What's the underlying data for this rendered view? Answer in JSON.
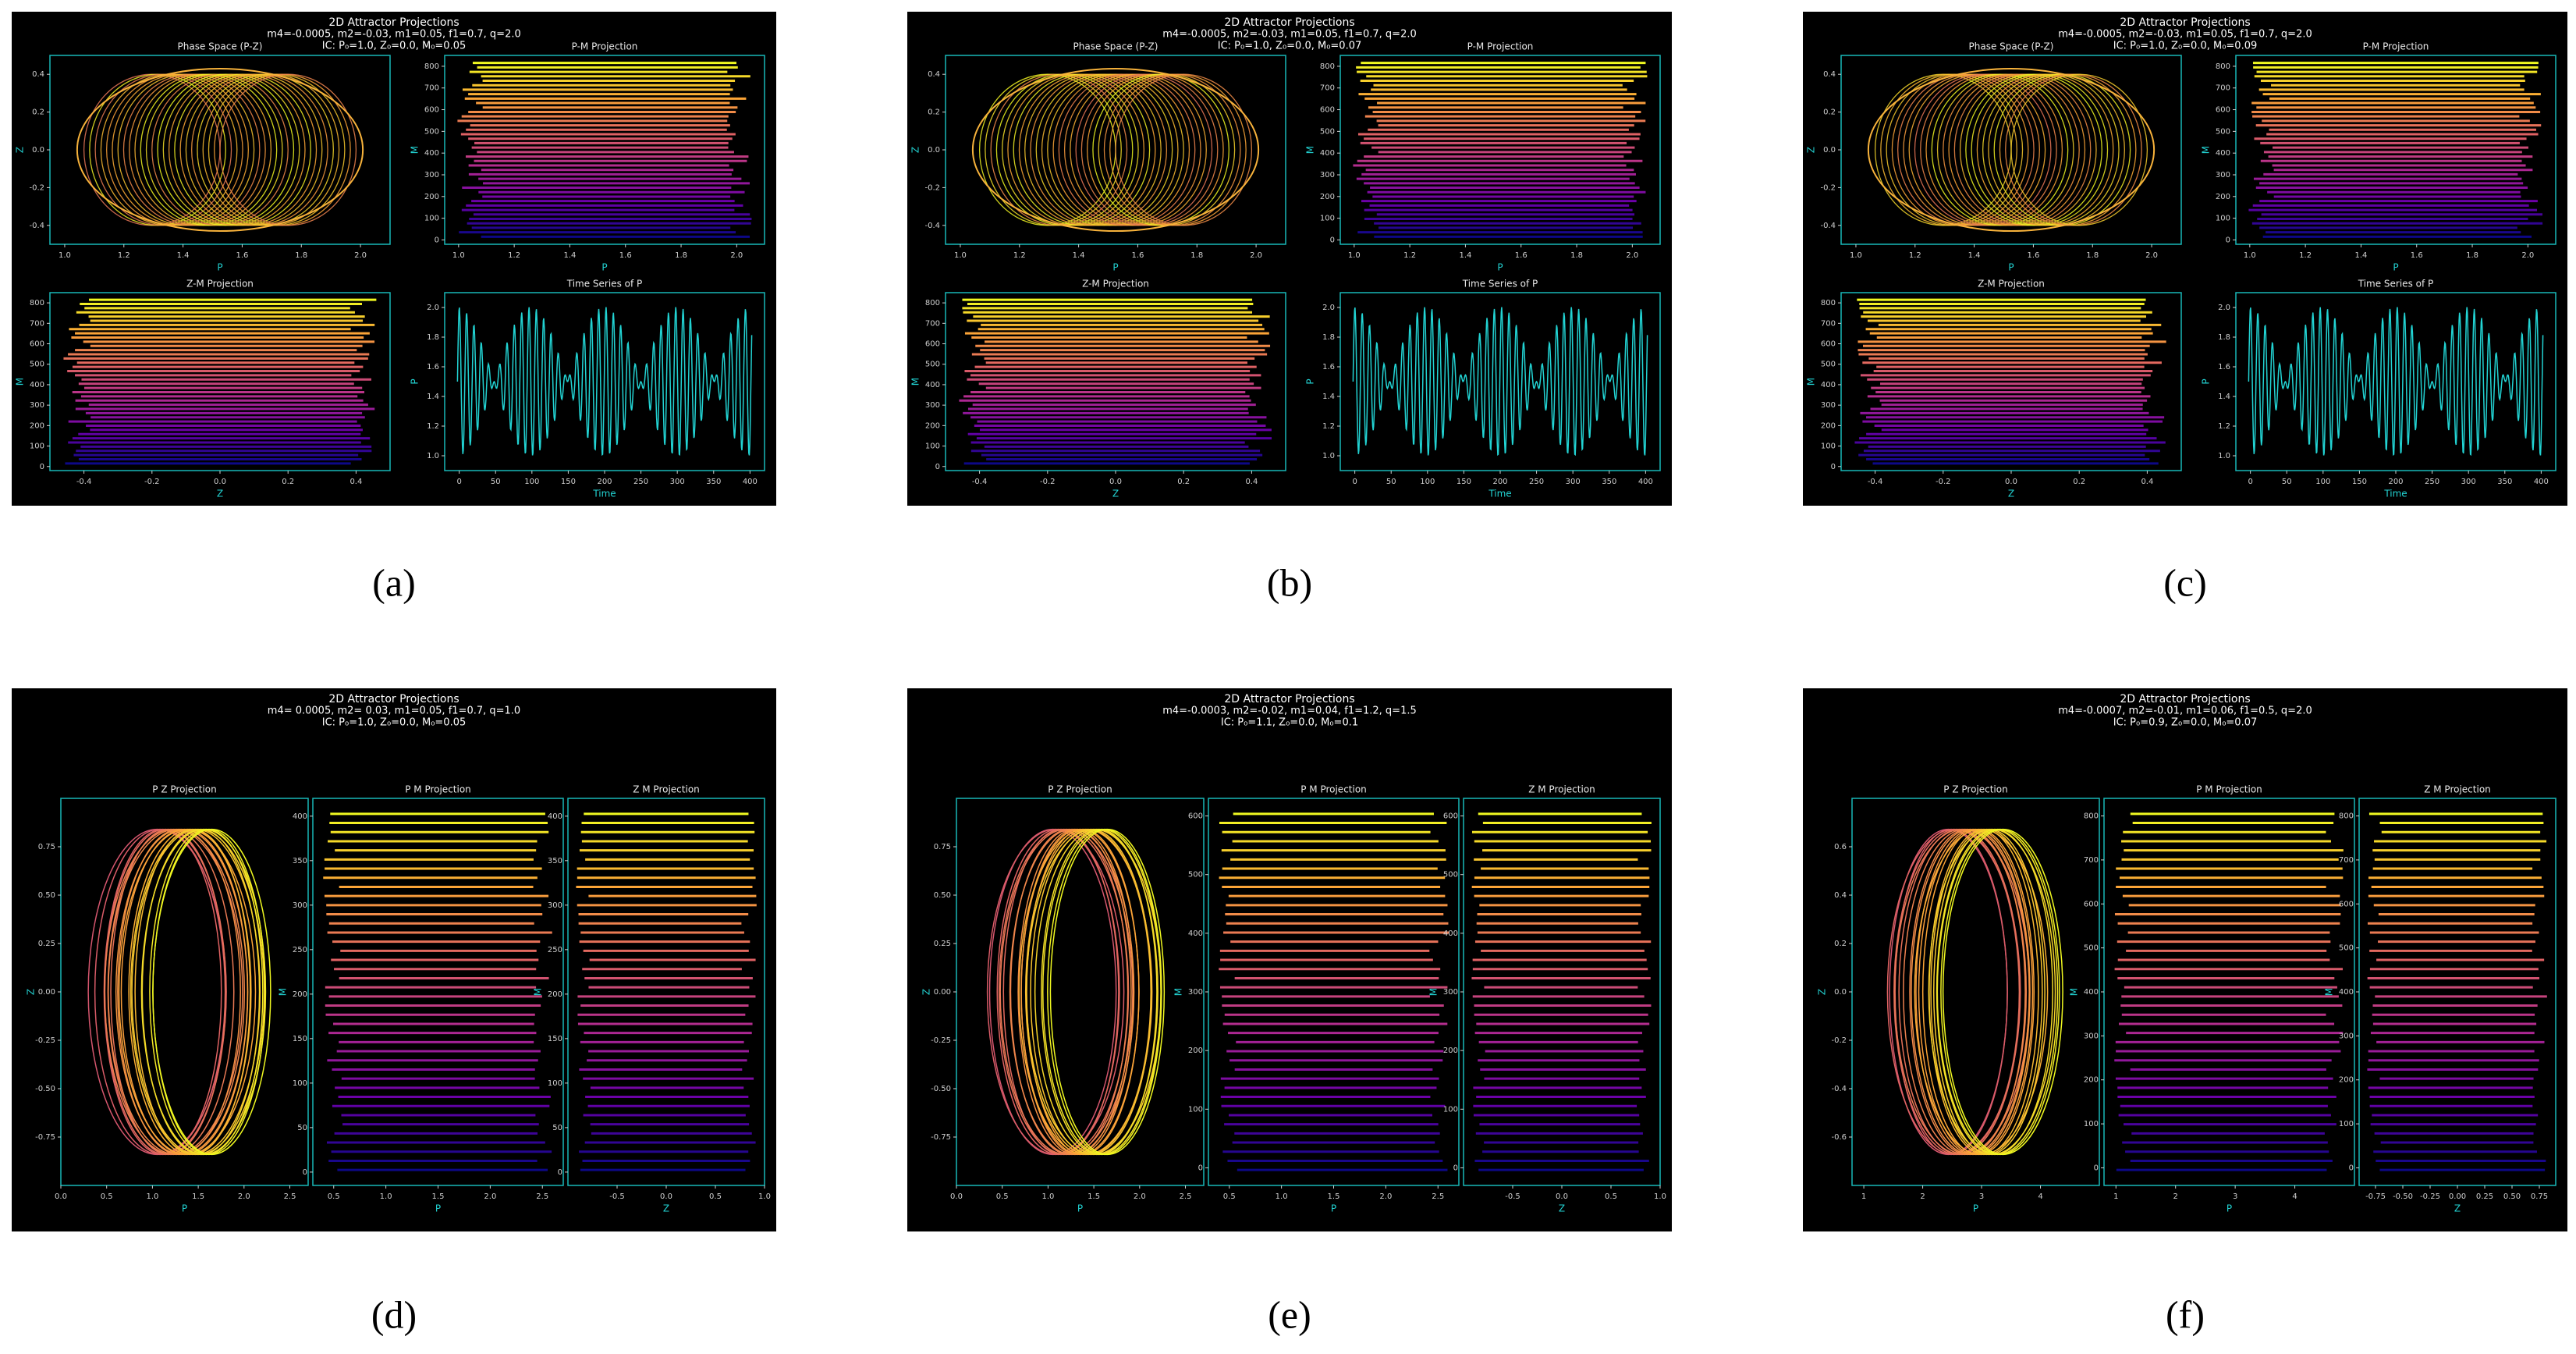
{
  "panels": [
    {
      "label": "(a)",
      "title": "2D Attractor Projections",
      "params": "m4=-0.0005, m2=-0.03, m1=0.05, f1=0.7, q=2.0",
      "ic": "IC: P₀=1.0, Z₀=0.0, M₀=0.05",
      "subplots": [
        {
          "title": "Phase Space (P-Z)",
          "xlabel": "P",
          "ylabel": "Z",
          "xlim": [
            0.95,
            2.1
          ],
          "xticks": [
            {
              "value": 1,
              "label": "1.0"
            },
            1.2,
            1.4,
            1.6,
            1.8,
            {
              "value": 2,
              "label": "2.0"
            }
          ],
          "ylim": [
            -0.5,
            0.5
          ],
          "yticks": [
            -0.4,
            -0.2,
            {
              "value": 0,
              "label": "0.0"
            },
            0.2,
            0.4
          ]
        },
        {
          "title": "P-M Projection",
          "xlabel": "P",
          "ylabel": "M",
          "xlim": [
            0.95,
            2.1
          ],
          "xticks": [
            {
              "value": 1,
              "label": "1.0"
            },
            1.2,
            1.4,
            1.6,
            1.8,
            {
              "value": 2,
              "label": "2.0"
            }
          ],
          "ylim": [
            -20,
            850
          ],
          "yticks": [
            0,
            100,
            200,
            300,
            400,
            500,
            600,
            700,
            800
          ]
        },
        {
          "title": "Z-M Projection",
          "xlabel": "Z",
          "ylabel": "M",
          "xlim": [
            -0.5,
            0.5
          ],
          "xticks": [
            -0.4,
            -0.2,
            {
              "value": 0,
              "label": "0.0"
            },
            0.2,
            0.4
          ],
          "ylim": [
            -20,
            850
          ],
          "yticks": [
            0,
            100,
            200,
            300,
            400,
            500,
            600,
            700,
            800
          ]
        },
        {
          "title": "Time Series of P",
          "xlabel": "Time",
          "ylabel": "P",
          "xlim": [
            -20,
            420
          ],
          "xticks": [
            0,
            50,
            100,
            150,
            200,
            250,
            300,
            350,
            400
          ],
          "ylim": [
            0.9,
            2.1
          ],
          "yticks": [
            {
              "value": 1,
              "label": "1.0"
            },
            1.2,
            1.4,
            1.6,
            1.8,
            {
              "value": 2,
              "label": "2.0"
            }
          ]
        }
      ]
    },
    {
      "label": "(b)",
      "title": "2D Attractor Projections",
      "params": "m4=-0.0005, m2=-0.03, m1=0.05, f1=0.7, q=2.0",
      "ic": "IC: P₀=1.0, Z₀=0.0, M₀=0.07",
      "subplots": [
        {
          "title": "Phase Space (P-Z)",
          "xlabel": "P",
          "ylabel": "Z",
          "xlim": [
            0.95,
            2.1
          ],
          "xticks": [
            {
              "value": 1,
              "label": "1.0"
            },
            1.2,
            1.4,
            1.6,
            1.8,
            {
              "value": 2,
              "label": "2.0"
            }
          ],
          "ylim": [
            -0.5,
            0.5
          ],
          "yticks": [
            -0.4,
            -0.2,
            {
              "value": 0,
              "label": "0.0"
            },
            0.2,
            0.4
          ]
        },
        {
          "title": "P-M Projection",
          "xlabel": "P",
          "ylabel": "M",
          "xlim": [
            0.95,
            2.1
          ],
          "xticks": [
            {
              "value": 1,
              "label": "1.0"
            },
            1.2,
            1.4,
            1.6,
            1.8,
            {
              "value": 2,
              "label": "2.0"
            }
          ],
          "ylim": [
            -20,
            850
          ],
          "yticks": [
            0,
            100,
            200,
            300,
            400,
            500,
            600,
            700,
            800
          ]
        },
        {
          "title": "Z-M Projection",
          "xlabel": "Z",
          "ylabel": "M",
          "xlim": [
            -0.5,
            0.5
          ],
          "xticks": [
            -0.4,
            -0.2,
            {
              "value": 0,
              "label": "0.0"
            },
            0.2,
            0.4
          ],
          "ylim": [
            -20,
            850
          ],
          "yticks": [
            0,
            100,
            200,
            300,
            400,
            500,
            600,
            700,
            800
          ]
        },
        {
          "title": "Time Series of P",
          "xlabel": "Time",
          "ylabel": "P",
          "xlim": [
            -20,
            420
          ],
          "xticks": [
            0,
            50,
            100,
            150,
            200,
            250,
            300,
            350,
            400
          ],
          "ylim": [
            0.9,
            2.1
          ],
          "yticks": [
            {
              "value": 1,
              "label": "1.0"
            },
            1.2,
            1.4,
            1.6,
            1.8,
            {
              "value": 2,
              "label": "2.0"
            }
          ]
        }
      ]
    },
    {
      "label": "(c)",
      "title": "2D Attractor Projections",
      "params": "m4=-0.0005, m2=-0.03, m1=0.05, f1=0.7, q=2.0",
      "ic": "IC: P₀=1.0, Z₀=0.0, M₀=0.09",
      "subplots": [
        {
          "title": "Phase Space (P-Z)",
          "xlabel": "P",
          "ylabel": "Z",
          "xlim": [
            0.95,
            2.1
          ],
          "xticks": [
            {
              "value": 1,
              "label": "1.0"
            },
            1.2,
            1.4,
            1.6,
            1.8,
            {
              "value": 2,
              "label": "2.0"
            }
          ],
          "ylim": [
            -0.5,
            0.5
          ],
          "yticks": [
            -0.4,
            -0.2,
            {
              "value": 0,
              "label": "0.0"
            },
            0.2,
            0.4
          ]
        },
        {
          "title": "P-M Projection",
          "xlabel": "P",
          "ylabel": "M",
          "xlim": [
            0.95,
            2.1
          ],
          "xticks": [
            {
              "value": 1,
              "label": "1.0"
            },
            1.2,
            1.4,
            1.6,
            1.8,
            {
              "value": 2,
              "label": "2.0"
            }
          ],
          "ylim": [
            -20,
            850
          ],
          "yticks": [
            0,
            100,
            200,
            300,
            400,
            500,
            600,
            700,
            800
          ]
        },
        {
          "title": "Z-M Projection",
          "xlabel": "Z",
          "ylabel": "M",
          "xlim": [
            -0.5,
            0.5
          ],
          "xticks": [
            -0.4,
            -0.2,
            {
              "value": 0,
              "label": "0.0"
            },
            0.2,
            0.4
          ],
          "ylim": [
            -20,
            850
          ],
          "yticks": [
            0,
            100,
            200,
            300,
            400,
            500,
            600,
            700,
            800
          ]
        },
        {
          "title": "Time Series of P",
          "xlabel": "Time",
          "ylabel": "P",
          "xlim": [
            -20,
            420
          ],
          "xticks": [
            0,
            50,
            100,
            150,
            200,
            250,
            300,
            350,
            400
          ],
          "ylim": [
            0.9,
            2.1
          ],
          "yticks": [
            {
              "value": 1,
              "label": "1.0"
            },
            1.2,
            1.4,
            1.6,
            1.8,
            {
              "value": 2,
              "label": "2.0"
            }
          ]
        }
      ]
    },
    {
      "label": "(d)",
      "title": "2D Attractor Projections",
      "params": "m4= 0.0005, m2= 0.03, m1=0.05, f1=0.7, q=1.0",
      "ic": "IC: P₀=1.0, Z₀=0.0, M₀=0.05",
      "subplots": [
        {
          "title": "P Z Projection",
          "xlabel": "P",
          "ylabel": "Z",
          "xlim": [
            0,
            2.7
          ],
          "xticks": [
            {
              "value": 0,
              "label": "0.0"
            },
            0.5,
            {
              "value": 1,
              "label": "1.0"
            },
            1.5,
            {
              "value": 2,
              "label": "2.0"
            },
            2.5
          ],
          "ylim": [
            -1,
            1
          ],
          "yticks": [
            -0.75,
            {
              "value": -0.5,
              "label": "-0.50"
            },
            -0.25,
            {
              "value": 0,
              "label": "0.00"
            },
            0.25,
            {
              "value": 0.5,
              "label": "0.50"
            },
            0.75
          ]
        },
        {
          "title": "P M Projection",
          "xlabel": "P",
          "ylabel": "M",
          "xlim": [
            0.3,
            2.7
          ],
          "xticks": [
            0.5,
            {
              "value": 1,
              "label": "1.0"
            },
            1.5,
            {
              "value": 2,
              "label": "2.0"
            },
            2.5
          ],
          "ylim": [
            -15,
            420
          ],
          "yticks": [
            0,
            50,
            100,
            150,
            200,
            250,
            300,
            350,
            400
          ]
        },
        {
          "title": "Z M Projection",
          "xlabel": "Z",
          "ylabel": "M",
          "xlim": [
            -1,
            1
          ],
          "xticks": [
            -0.5,
            {
              "value": 0,
              "label": "0.0"
            },
            0.5,
            {
              "value": 1,
              "label": "1.0"
            }
          ],
          "ylim": [
            -15,
            420
          ],
          "yticks": [
            0,
            50,
            100,
            150,
            200,
            250,
            300,
            350,
            400
          ]
        }
      ]
    },
    {
      "label": "(e)",
      "title": "2D Attractor Projections",
      "params": "m4=-0.0003, m2=-0.02, m1=0.04, f1=1.2, q=1.5",
      "ic": "IC: P₀=1.1, Z₀=0.0, M₀=0.1",
      "subplots": [
        {
          "title": "P Z Projection",
          "xlabel": "P",
          "ylabel": "Z",
          "xlim": [
            0,
            2.7
          ],
          "xticks": [
            {
              "value": 0,
              "label": "0.0"
            },
            0.5,
            {
              "value": 1,
              "label": "1.0"
            },
            1.5,
            {
              "value": 2,
              "label": "2.0"
            },
            2.5
          ],
          "ylim": [
            -1,
            1
          ],
          "yticks": [
            -0.75,
            {
              "value": -0.5,
              "label": "-0.50"
            },
            -0.25,
            {
              "value": 0,
              "label": "0.00"
            },
            0.25,
            {
              "value": 0.5,
              "label": "0.50"
            },
            0.75
          ]
        },
        {
          "title": "P M Projection",
          "xlabel": "P",
          "ylabel": "M",
          "xlim": [
            0.3,
            2.7
          ],
          "xticks": [
            0.5,
            {
              "value": 1,
              "label": "1.0"
            },
            1.5,
            {
              "value": 2,
              "label": "2.0"
            },
            2.5
          ],
          "ylim": [
            -30,
            630
          ],
          "yticks": [
            0,
            100,
            200,
            300,
            400,
            500,
            600
          ]
        },
        {
          "title": "Z M Projection",
          "xlabel": "Z",
          "ylabel": "M",
          "xlim": [
            -1,
            1
          ],
          "xticks": [
            -0.5,
            {
              "value": 0,
              "label": "0.0"
            },
            0.5,
            {
              "value": 1,
              "label": "1.0"
            }
          ],
          "ylim": [
            -30,
            630
          ],
          "yticks": [
            0,
            100,
            200,
            300,
            400,
            500,
            600
          ]
        }
      ]
    },
    {
      "label": "(f)",
      "title": "2D Attractor Projections",
      "params": "m4=-0.0007, m2=-0.01, m1=0.06, f1=0.5, q=2.0",
      "ic": "IC: P₀=0.9, Z₀=0.0, M₀=0.07",
      "subplots": [
        {
          "title": "P Z Projection",
          "xlabel": "P",
          "ylabel": "Z",
          "xlim": [
            0.8,
            5
          ],
          "xticks": [
            1,
            2,
            3,
            4
          ],
          "ylim": [
            -0.8,
            0.8
          ],
          "yticks": [
            -0.6,
            -0.4,
            -0.2,
            {
              "value": 0,
              "label": "0.0"
            },
            0.2,
            0.4,
            0.6
          ]
        },
        {
          "title": "P M Projection",
          "xlabel": "P",
          "ylabel": "M",
          "xlim": [
            0.8,
            5
          ],
          "xticks": [
            1,
            2,
            3,
            4
          ],
          "ylim": [
            -40,
            840
          ],
          "yticks": [
            0,
            100,
            200,
            300,
            400,
            500,
            600,
            700,
            800
          ]
        },
        {
          "title": "Z M Projection",
          "xlabel": "Z",
          "ylabel": "M",
          "xlim": [
            -0.9,
            0.9
          ],
          "xticks": [
            -0.75,
            {
              "value": -0.5,
              "label": "-0.50"
            },
            -0.25,
            {
              "value": 0,
              "label": "0.00"
            },
            0.25,
            {
              "value": 0.5,
              "label": "0.50"
            },
            0.75
          ],
          "ylim": [
            -40,
            840
          ],
          "yticks": [
            0,
            100,
            200,
            300,
            400,
            500,
            600,
            700,
            800
          ]
        }
      ]
    }
  ]
}
